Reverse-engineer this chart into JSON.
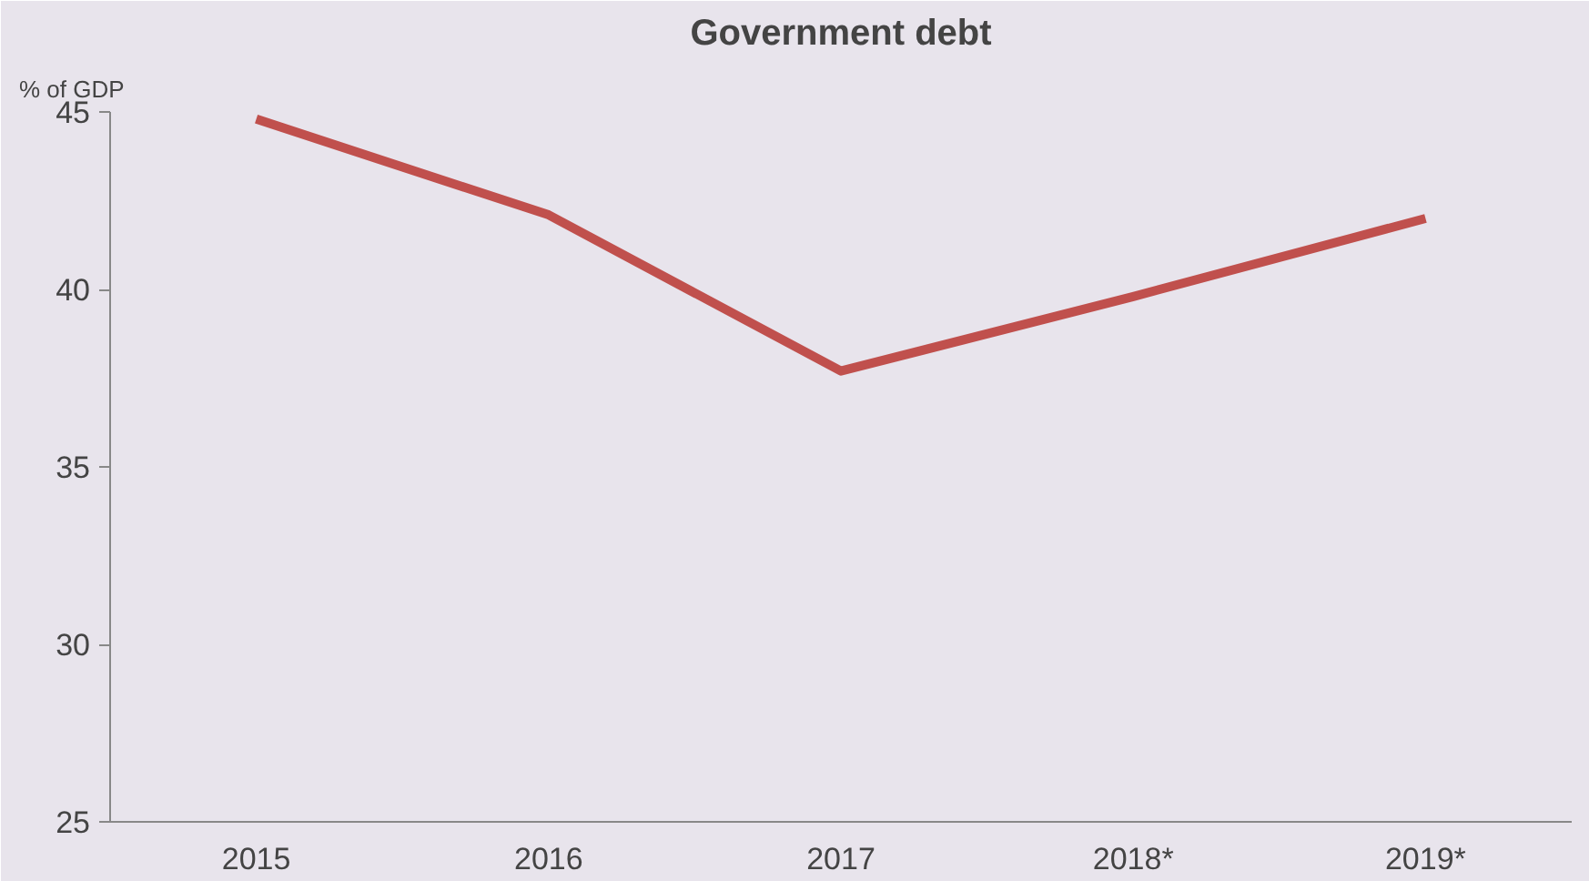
{
  "chart_data": {
    "type": "line",
    "title": "Government debt",
    "ylabel": "% of GDP",
    "categories": [
      "2015",
      "2016",
      "2017",
      "2018*",
      "2019*"
    ],
    "series": [
      {
        "color": "#c0504d",
        "values": [
          44.8,
          42.1,
          37.7,
          39.8,
          42.0
        ]
      }
    ],
    "ylim": [
      25,
      45
    ],
    "yticks": [
      25,
      30,
      35,
      40,
      45
    ],
    "grid": false,
    "marker": "none",
    "line_style": "solid"
  }
}
